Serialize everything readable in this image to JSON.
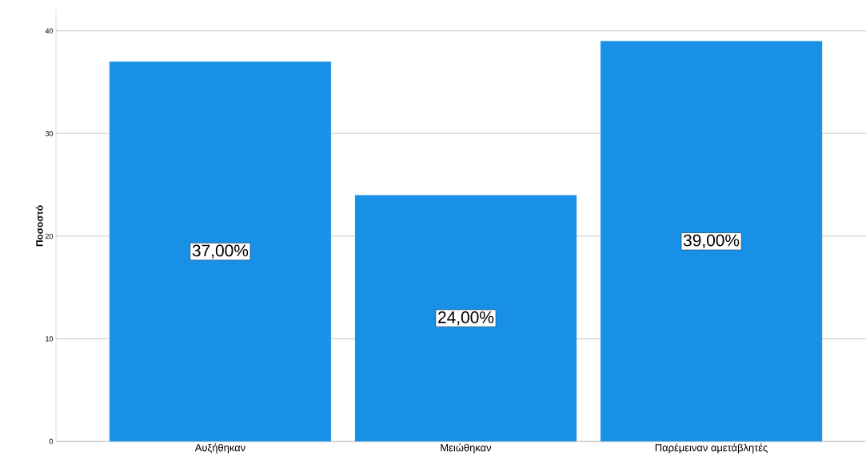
{
  "chart_data": {
    "type": "bar",
    "ylabel": "Ποσοστό",
    "categories": [
      "Αυξήθηκαν",
      "Μειώθηκαν",
      "Παρέμειναν αμετάβλητές"
    ],
    "values": [
      37,
      24,
      39
    ],
    "value_labels": [
      "37,00%",
      "24,00%",
      "39,00%"
    ],
    "color": "#1890e6",
    "ylim": [
      0,
      42
    ],
    "yticks": [
      0,
      10,
      20,
      30,
      40
    ],
    "grid": "y"
  }
}
